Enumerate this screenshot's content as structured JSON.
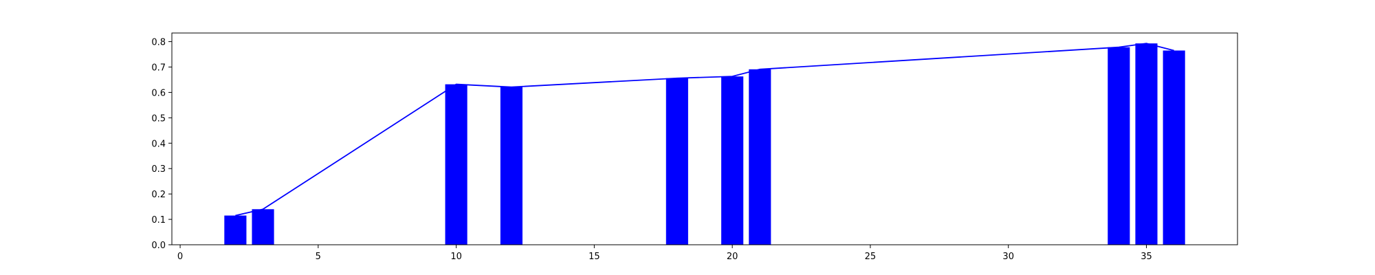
{
  "chart_data": {
    "type": "bar",
    "title": "",
    "xlabel": "",
    "ylabel": "",
    "xlim": [
      -0.3,
      38.3
    ],
    "ylim": [
      0,
      0.834
    ],
    "xticks": [
      0,
      5,
      10,
      15,
      20,
      25,
      30,
      35
    ],
    "yticks": [
      0.0,
      0.1,
      0.2,
      0.3,
      0.4,
      0.5,
      0.6,
      0.7,
      0.8
    ],
    "x": [
      2,
      3,
      10,
      12,
      18,
      20,
      21,
      34,
      35,
      36
    ],
    "values": [
      0.115,
      0.14,
      0.632,
      0.621,
      0.656,
      0.663,
      0.691,
      0.778,
      0.793,
      0.765
    ],
    "bar_width": 0.8,
    "bar_color": "#0000ff",
    "line": {
      "x": [
        2,
        3,
        10,
        12,
        18,
        20,
        21,
        34,
        35,
        36
      ],
      "y": [
        0.115,
        0.14,
        0.632,
        0.621,
        0.656,
        0.663,
        0.691,
        0.778,
        0.793,
        0.765
      ],
      "color": "#0000ff"
    },
    "grid": false,
    "legend": "none"
  }
}
